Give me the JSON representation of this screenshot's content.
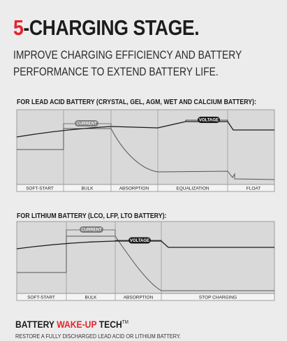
{
  "header": {
    "title_number": "5",
    "title_rest": "-CHARGING STAGE.",
    "subtitle_line1": "IMPROVE CHARGING EFFICIENCY AND BATTERY",
    "subtitle_line2": "PERFORMANCE TO EXTEND BATTERY LIFE."
  },
  "lead_acid": {
    "heading": "FOR LEAD ACID BATTERY (CRYSTAL, GEL, AGM, WET AND CALCIUM BATTERY):",
    "stages": [
      "SOFT-START",
      "BULK",
      "ABSORPTION",
      "EQUALIZATION",
      "FLOAT"
    ],
    "current_badge": "CURRENT",
    "voltage_badge": "VOLTAGE"
  },
  "lithium": {
    "heading": "FOR LITHIUM BATTERY (LCO, LFP, LTO BATTERY):",
    "stages": [
      "SOFT-START",
      "BULK",
      "ABSORPTION",
      "STOP CHARGING"
    ],
    "current_badge": "CURRENT",
    "voltage_badge": "VOLTAGE"
  },
  "footer": {
    "title_a": "BATTERY ",
    "title_b": "WAKE-UP",
    "title_c": " TECH",
    "trademark": "TM",
    "description": "RESTORE A FULLY DISCHARGED LEAD ACID OR LITHIUM BATTERY."
  },
  "colors": {
    "accent": "#e3242b",
    "chart_bg": "#d8d8d8",
    "line": "#1a1a1a",
    "current_line": "#555555"
  }
}
